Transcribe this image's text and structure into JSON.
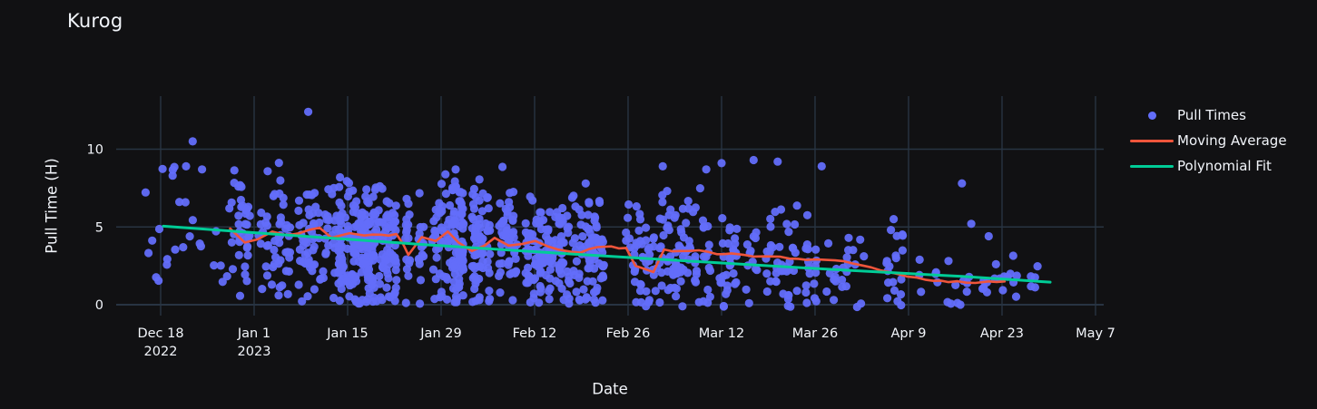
{
  "chart_data": {
    "type": "scatter",
    "title": "Kurog",
    "xlabel": "Date",
    "ylabel": "Pull Time (H)",
    "theme": {
      "background": "#111113",
      "grid_color": "#283442",
      "text_color": "#f2f5fa"
    },
    "x_axis": {
      "tick_days": [
        0,
        14,
        28,
        42,
        56,
        70,
        84,
        98,
        112,
        126,
        140
      ],
      "tick_labels": [
        "Dec 18",
        "Jan 1",
        "Jan 15",
        "Jan 29",
        "Feb 12",
        "Feb 26",
        "Mar 12",
        "Mar 26",
        "Apr 9",
        "Apr 23",
        "May 7"
      ],
      "tick_sublabels": [
        "2022",
        "2023",
        "",
        "",
        "",
        "",
        "",
        "",
        "",
        "",
        ""
      ],
      "range_days": [
        -6.65,
        141.2
      ],
      "grid": true
    },
    "y_axis": {
      "tick_values": [
        0,
        5,
        10
      ],
      "tick_labels": [
        "0",
        "5",
        "10"
      ],
      "range": [
        -0.7,
        13.41
      ],
      "grid": true
    },
    "legend": {
      "position": "right",
      "entries": [
        {
          "label": "Pull Times",
          "marker": "dot",
          "color": "#636efa"
        },
        {
          "label": "Moving Average",
          "marker": "line",
          "color": "#ef553b"
        },
        {
          "label": "Polynomial Fit",
          "marker": "line",
          "color": "#00cc96"
        }
      ]
    },
    "series": {
      "pull_times": {
        "name": "Pull Times",
        "color": "#636efa",
        "marker_radius": 4.6,
        "opacity": 0.95,
        "seed": 20,
        "x_jitter_days": 0.38,
        "skip_day_chance": 0.18,
        "clusters": [
          {
            "days": [
              -2,
              10
            ],
            "per_day": 2,
            "mean": 5.3,
            "sd": 2.3,
            "min": 0.9,
            "max": 10.6
          },
          {
            "days": [
              11,
              26
            ],
            "per_day": 11,
            "mean": 4.3,
            "sd": 1.9,
            "min": 0.1,
            "max": 10.0
          },
          {
            "days": [
              27,
              52
            ],
            "per_day": 28,
            "mean": 3.9,
            "sd": 1.9,
            "min": 0.05,
            "max": 10.4
          },
          {
            "days": [
              53,
              66
            ],
            "per_day": 18,
            "mean": 3.5,
            "sd": 1.8,
            "min": 0.05,
            "max": 9.6
          },
          {
            "days": [
              67,
              83
            ],
            "per_day": 11,
            "mean": 3.1,
            "sd": 1.7,
            "min": 0.0,
            "max": 9.3
          },
          {
            "days": [
              84,
              97
            ],
            "per_day": 8,
            "mean": 2.9,
            "sd": 1.7,
            "min": 0.0,
            "max": 9.0
          },
          {
            "days": [
              98,
              111
            ],
            "per_day": 5,
            "mean": 2.2,
            "sd": 1.5,
            "min": 0.0,
            "max": 8.9
          },
          {
            "days": [
              112,
              131
            ],
            "per_day": 2.4,
            "mean": 1.5,
            "sd": 1.1,
            "min": 0.0,
            "max": 4.6
          }
        ],
        "notable_points": [
          [
            22.1,
            12.4
          ],
          [
            4.8,
            10.5
          ],
          [
            3.8,
            8.9
          ],
          [
            1.8,
            8.3
          ],
          [
            6.2,
            8.7
          ],
          [
            75.2,
            8.9
          ],
          [
            81.7,
            8.7
          ],
          [
            84.0,
            9.1
          ],
          [
            88.8,
            9.3
          ],
          [
            92.4,
            9.2
          ],
          [
            99.0,
            8.9
          ],
          [
            120.0,
            7.8
          ],
          [
            121.4,
            5.2
          ],
          [
            124.0,
            4.4
          ]
        ]
      },
      "moving_average": {
        "name": "Moving Average",
        "color": "#ef553b",
        "width": 2.6,
        "points": [
          [
            10.4,
            4.9
          ],
          [
            11.5,
            4.45
          ],
          [
            12.6,
            4.0
          ],
          [
            14.5,
            4.2
          ],
          [
            16.7,
            4.7
          ],
          [
            18.5,
            4.5
          ],
          [
            20.8,
            4.6
          ],
          [
            23.8,
            4.95
          ],
          [
            25.6,
            4.3
          ],
          [
            28.3,
            4.6
          ],
          [
            30.5,
            4.45
          ],
          [
            33.0,
            4.5
          ],
          [
            35.3,
            4.55
          ],
          [
            36.3,
            3.9
          ],
          [
            37.1,
            3.2
          ],
          [
            39.1,
            4.35
          ],
          [
            41.2,
            4.1
          ],
          [
            43.0,
            4.7
          ],
          [
            44.6,
            4.0
          ],
          [
            46.6,
            3.45
          ],
          [
            48.5,
            3.8
          ],
          [
            50.0,
            4.3
          ],
          [
            52.1,
            3.8
          ],
          [
            54.1,
            3.9
          ],
          [
            56.1,
            4.1
          ],
          [
            58.0,
            3.75
          ],
          [
            59.5,
            3.55
          ],
          [
            61.5,
            3.4
          ],
          [
            62.9,
            3.35
          ],
          [
            65.4,
            3.7
          ],
          [
            67.5,
            3.75
          ],
          [
            69.7,
            3.65
          ],
          [
            71.1,
            2.5
          ],
          [
            72.5,
            2.3
          ],
          [
            73.8,
            2.1
          ],
          [
            75.4,
            3.55
          ],
          [
            77.9,
            3.45
          ],
          [
            80.6,
            3.5
          ],
          [
            83.3,
            3.25
          ],
          [
            85.5,
            3.3
          ],
          [
            87.4,
            3.2
          ],
          [
            91.5,
            3.1
          ],
          [
            95.5,
            2.95
          ],
          [
            99.0,
            2.9
          ],
          [
            101.0,
            2.85
          ],
          [
            103.7,
            2.65
          ],
          [
            106.4,
            2.4
          ],
          [
            109.1,
            2.1
          ],
          [
            111.9,
            1.8
          ],
          [
            114.6,
            1.6
          ],
          [
            118.0,
            1.45
          ],
          [
            122.0,
            1.4
          ],
          [
            124.0,
            1.5
          ],
          [
            126.4,
            1.5
          ]
        ]
      },
      "polynomial_fit": {
        "name": "Polynomial Fit",
        "color": "#00cc96",
        "width": 3,
        "points": [
          [
            0.4,
            5.05
          ],
          [
            20,
            4.45
          ],
          [
            40,
            3.85
          ],
          [
            60,
            3.3
          ],
          [
            80,
            2.78
          ],
          [
            100,
            2.28
          ],
          [
            120,
            1.82
          ],
          [
            133.2,
            1.45
          ]
        ]
      }
    }
  }
}
